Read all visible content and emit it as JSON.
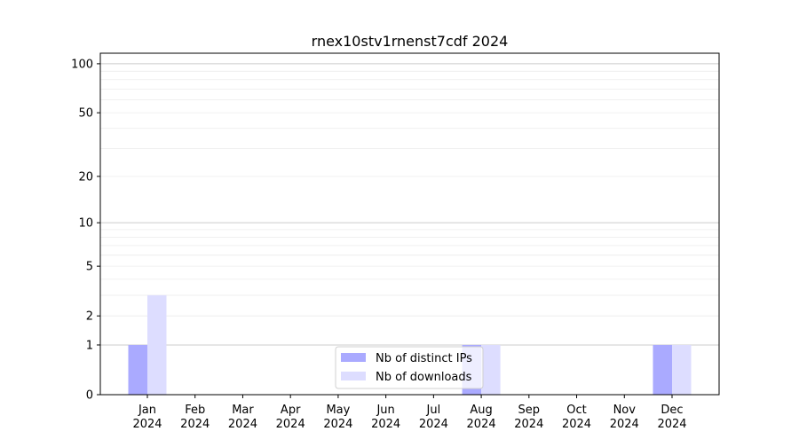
{
  "chart_data": {
    "type": "bar",
    "title": "rnex10stv1rnenst7cdf 2024",
    "categories": [
      "Jan\n2024",
      "Feb\n2024",
      "Mar\n2024",
      "Apr\n2024",
      "May\n2024",
      "Jun\n2024",
      "Jul\n2024",
      "Aug\n2024",
      "Sep\n2024",
      "Oct\n2024",
      "Nov\n2024",
      "Dec\n2024"
    ],
    "series": [
      {
        "name": "Nb of distinct IPs",
        "color": "#aaaaff",
        "values": [
          1,
          0,
          0,
          0,
          0,
          0,
          0,
          1,
          0,
          0,
          0,
          1
        ]
      },
      {
        "name": "Nb of downloads",
        "color": "#ddddff",
        "values": [
          3,
          0,
          0,
          0,
          0,
          0,
          0,
          1,
          0,
          0,
          0,
          1
        ]
      }
    ],
    "yscale": "symlog",
    "yticks": [
      0,
      1,
      2,
      5,
      10,
      20,
      50,
      100
    ],
    "ylim": [
      0,
      116
    ],
    "grid": true,
    "legend": "bottom-center",
    "xlabel": "",
    "ylabel": ""
  }
}
